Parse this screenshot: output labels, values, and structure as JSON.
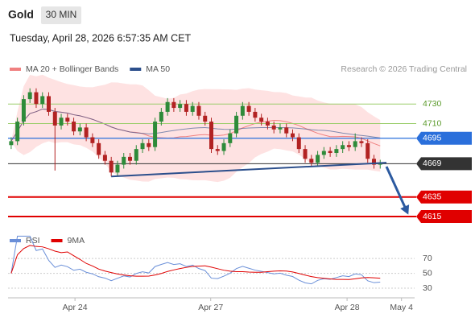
{
  "header": {
    "symbol": "Gold",
    "timeframe": "30 MIN",
    "datetime": "Tuesday, April 28, 2026 6:57:35 AM CET",
    "copyright": "Research © 2026 Trading Central"
  },
  "chart_data": {
    "type": "candlestick",
    "legend": [
      {
        "name": "MA 20 + Bollinger Bands",
        "color": "#f08080"
      },
      {
        "name": "MA 50",
        "color": "#2c4f8c"
      }
    ],
    "open": [
      4688,
      4692,
      4712,
      4735,
      4742,
      4730,
      4738,
      4722,
      4708,
      4716,
      4712,
      4702,
      4706,
      4696,
      4690,
      4678,
      4672,
      4660,
      4668,
      4676,
      4672,
      4684,
      4690,
      4686,
      4712,
      4722,
      4732,
      4726,
      4730,
      4722,
      4728,
      4718,
      4712,
      4684,
      4682,
      4690,
      4700,
      4718,
      4728,
      4722,
      4716,
      4712,
      4708,
      4704,
      4706,
      4700,
      4696,
      4684,
      4674,
      4670,
      4678,
      4682,
      4680,
      4684,
      4688,
      4686,
      4692,
      4690,
      4674,
      4668
    ],
    "high": [
      4696,
      4716,
      4739,
      4746,
      4746,
      4742,
      4742,
      4726,
      4720,
      4720,
      4716,
      4710,
      4710,
      4700,
      4694,
      4682,
      4676,
      4672,
      4680,
      4680,
      4688,
      4694,
      4694,
      4716,
      4726,
      4736,
      4736,
      4734,
      4734,
      4732,
      4732,
      4722,
      4716,
      4688,
      4694,
      4704,
      4722,
      4732,
      4732,
      4726,
      4720,
      4716,
      4712,
      4710,
      4710,
      4704,
      4700,
      4688,
      4678,
      4682,
      4686,
      4686,
      4688,
      4692,
      4692,
      4700,
      4696,
      4694,
      4678,
      4673
    ],
    "low": [
      4684,
      4688,
      4708,
      4731,
      4726,
      4726,
      4718,
      4662,
      4704,
      4708,
      4698,
      4698,
      4692,
      4686,
      4674,
      4668,
      4656,
      4656,
      4664,
      4668,
      4668,
      4680,
      4682,
      4682,
      4708,
      4718,
      4722,
      4722,
      4718,
      4718,
      4714,
      4708,
      4680,
      4678,
      4678,
      4686,
      4696,
      4714,
      4718,
      4712,
      4708,
      4704,
      4700,
      4700,
      4696,
      4692,
      4680,
      4670,
      4666,
      4666,
      4674,
      4676,
      4676,
      4680,
      4682,
      4682,
      4686,
      4670,
      4664,
      4664
    ],
    "close": [
      4692,
      4712,
      4735,
      4742,
      4730,
      4738,
      4722,
      4708,
      4716,
      4712,
      4702,
      4706,
      4696,
      4690,
      4678,
      4672,
      4660,
      4668,
      4676,
      4672,
      4684,
      4690,
      4686,
      4712,
      4722,
      4732,
      4726,
      4730,
      4722,
      4728,
      4718,
      4712,
      4684,
      4682,
      4690,
      4700,
      4718,
      4728,
      4722,
      4716,
      4712,
      4708,
      4704,
      4706,
      4700,
      4696,
      4684,
      4674,
      4670,
      4678,
      4682,
      4680,
      4684,
      4688,
      4686,
      4692,
      4690,
      4674,
      4668,
      4669
    ],
    "up_color": "#2e8b3a",
    "down_color": "#b22222",
    "xlim": [
      -0.5,
      64.5
    ],
    "ylim": [
      4606,
      4754
    ],
    "xticks": [
      {
        "value": 10.2,
        "label": "Apr 24"
      },
      {
        "value": 31.9,
        "label": "Apr 27"
      },
      {
        "value": 53.7,
        "label": "Apr 28"
      },
      {
        "value": 62.4,
        "label": "May 4"
      }
    ],
    "levels": [
      {
        "value": 4730,
        "color": "#9acd6a"
      },
      {
        "value": 4710,
        "color": "#9acd6a"
      },
      {
        "value": 4695,
        "color": "#2a6fdb"
      },
      {
        "value": 4669,
        "color": "#333333"
      },
      {
        "value": 4635,
        "color": "#e00000"
      },
      {
        "value": 4615,
        "color": "#e00000"
      }
    ],
    "trendline": {
      "x": [
        16,
        60
      ],
      "y": [
        4656,
        4670
      ],
      "color": "#2c4f8c"
    },
    "arrow": {
      "x": [
        60,
        63.5
      ],
      "y": [
        4666,
        4617
      ],
      "color": "#2c5aa0"
    },
    "rsi": {
      "legend": [
        {
          "name": "RSI",
          "color": "#6a8fd8"
        },
        {
          "name": "9MA",
          "color": "#e00000"
        }
      ],
      "ylim": [
        16,
        82
      ],
      "yticks": [
        70,
        50,
        30
      ]
    }
  }
}
